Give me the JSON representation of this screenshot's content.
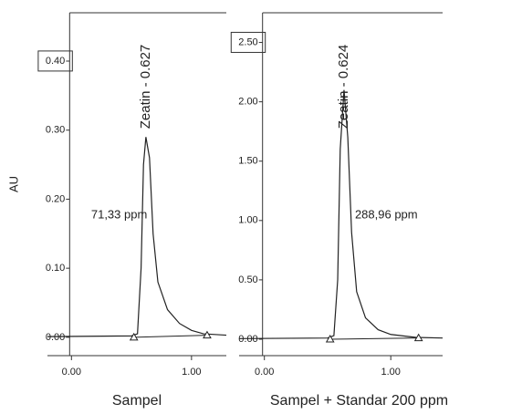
{
  "chart_data": [
    {
      "type": "line",
      "y_label": "AU",
      "x_label": "Sampel",
      "peak_label": "Zeatin - 0.627",
      "annotation": "71,33 ppm",
      "x": [
        -0.2,
        0.5,
        0.55,
        0.58,
        0.6,
        0.62,
        0.65,
        0.68,
        0.72,
        0.8,
        0.9,
        1.0,
        1.1,
        1.29
      ],
      "series": [
        {
          "color": "#222222",
          "values": [
            0.001,
            0.002,
            0.005,
            0.1,
            0.25,
            0.29,
            0.26,
            0.15,
            0.08,
            0.04,
            0.02,
            0.01,
            0.005,
            0.003
          ]
        }
      ],
      "markers": {
        "x": [
          0.52,
          1.13
        ],
        "values": [
          0.0,
          0.003
        ]
      },
      "xlim": [
        -0.2,
        1.29
      ],
      "ylim": [
        -0.02,
        0.47
      ],
      "xticks": [
        {
          "value": 0,
          "label": "0.00"
        },
        {
          "value": 1,
          "label": "1.00"
        }
      ],
      "yticks": [
        {
          "value": 0,
          "label": "0.00"
        },
        {
          "value": 0.1,
          "label": "0.10"
        },
        {
          "value": 0.2,
          "label": "0.20"
        },
        {
          "value": 0.3,
          "label": "0.30"
        },
        {
          "value": 0.4,
          "label": "0.40"
        }
      ]
    },
    {
      "type": "line",
      "x_label": "Sampel + Standar 200 ppm",
      "peak_label": "Zeatin - 0.624",
      "annotation": "288,96 ppm",
      "x": [
        -0.2,
        0.5,
        0.55,
        0.58,
        0.6,
        0.63,
        0.66,
        0.69,
        0.73,
        0.8,
        0.9,
        1.0,
        1.2,
        1.41
      ],
      "series": [
        {
          "color": "#222222",
          "values": [
            0.005,
            0.01,
            0.03,
            0.5,
            1.6,
            2.1,
            1.7,
            0.9,
            0.4,
            0.18,
            0.08,
            0.04,
            0.015,
            0.01
          ]
        }
      ],
      "markers": {
        "x": [
          0.52,
          1.22
        ],
        "values": [
          0.0,
          0.01
        ]
      },
      "xlim": [
        -0.2,
        1.41
      ],
      "ylim": [
        -0.1,
        2.75
      ],
      "xticks": [
        {
          "value": 0,
          "label": "0.00"
        },
        {
          "value": 1,
          "label": "1.00"
        }
      ],
      "yticks": [
        {
          "value": 0,
          "label": "0.00"
        },
        {
          "value": 0.5,
          "label": "0.50"
        },
        {
          "value": 1,
          "label": "1.00"
        },
        {
          "value": 1.5,
          "label": "1.50"
        },
        {
          "value": 2,
          "label": "2.00"
        },
        {
          "value": 2.5,
          "label": "2.50"
        }
      ]
    }
  ]
}
